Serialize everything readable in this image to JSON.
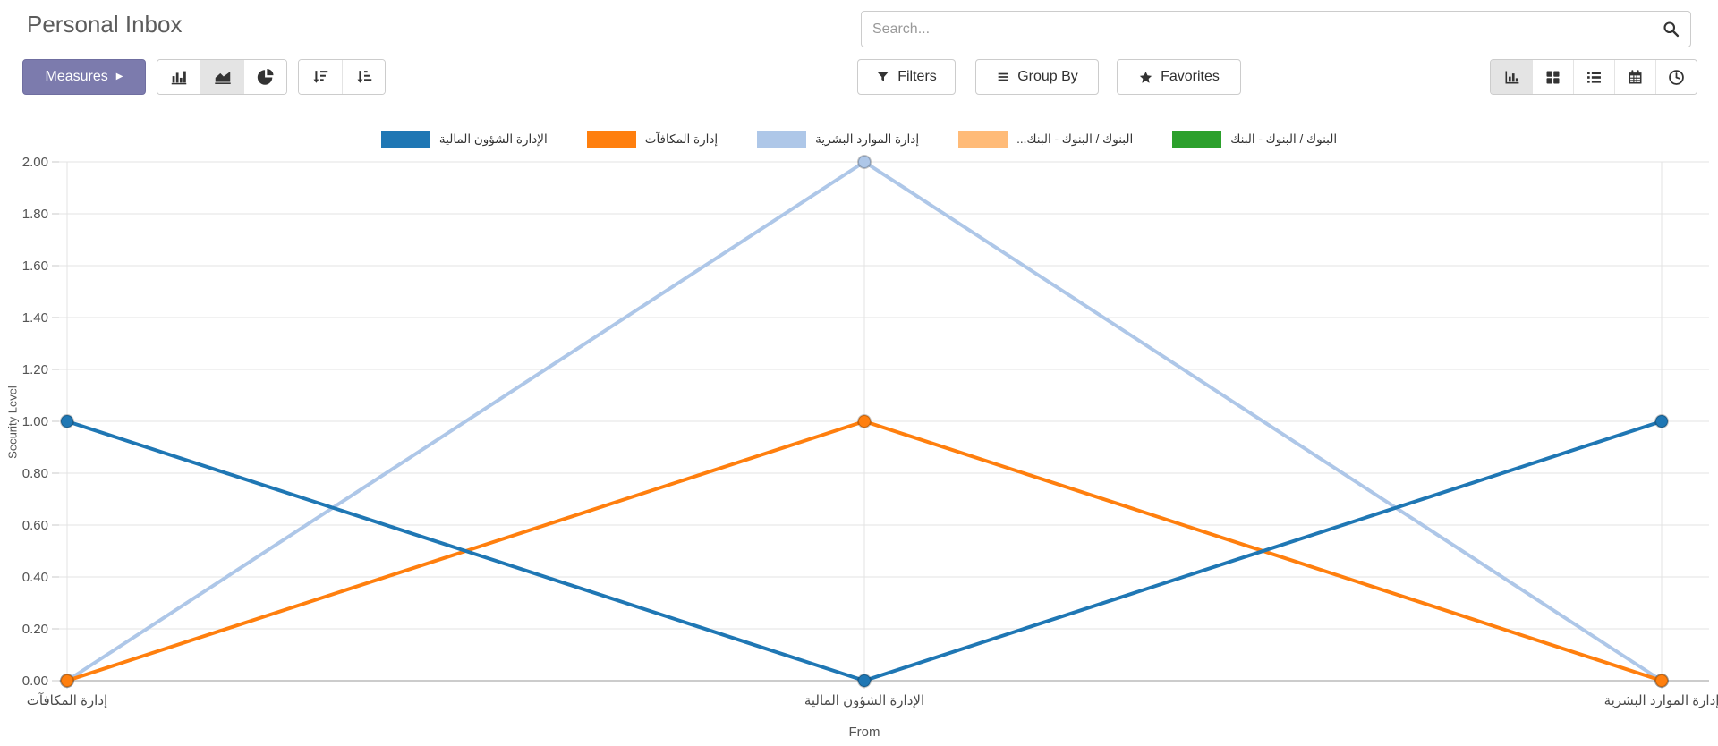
{
  "header": {
    "title": "Personal Inbox",
    "search": {
      "placeholder": "Search...",
      "value": ""
    }
  },
  "toolbar": {
    "measures_label": "Measures",
    "chart_types": [
      "bar",
      "area",
      "pie"
    ],
    "active_chart_type": "area",
    "sort_buttons": [
      "sort-descending",
      "sort-ascending"
    ],
    "filters_label": "Filters",
    "group_by_label": "Group By",
    "favorites_label": "Favorites",
    "view_switcher": [
      "graph",
      "kanban",
      "list",
      "calendar",
      "activity"
    ],
    "active_view": "graph"
  },
  "chart_data": {
    "type": "line",
    "title": "",
    "xlabel": "From",
    "ylabel": "Security Level",
    "ylim": [
      0,
      2
    ],
    "ytick_step": 0.2,
    "grid": true,
    "legend_position": "top",
    "categories": [
      "إدارة المكافآت",
      "الإدارة الشؤون المالية",
      "إدارة الموارد البشرية"
    ],
    "series": [
      {
        "name": "الإدارة الشؤون المالية",
        "color": "#1f77b4",
        "values": [
          1,
          0,
          1
        ]
      },
      {
        "name": "إدارة المكافآت",
        "color": "#ff7f0e",
        "values": [
          0,
          1,
          0
        ]
      },
      {
        "name": "إدارة الموارد البشرية",
        "color": "#aec7e8",
        "values": [
          0,
          2,
          0
        ]
      },
      {
        "name": "...البنوك / البنوك - البنك",
        "color": "#ffbb78",
        "values": []
      },
      {
        "name": "البنوك / البنوك - البنك",
        "color": "#2ca02c",
        "values": []
      }
    ]
  }
}
